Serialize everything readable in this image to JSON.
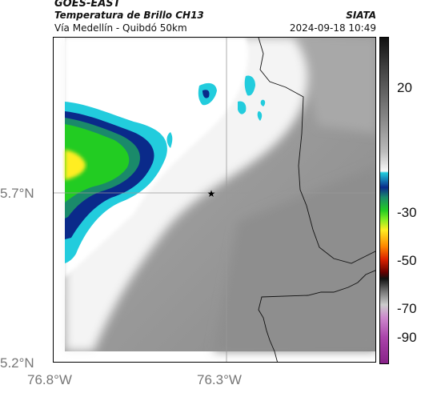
{
  "header": {
    "satellite": "GOES-EAST",
    "product": "Temperatura de Brillo CH13",
    "location": "Vía Medellín - Quibdó 50km",
    "organization": "SIATA",
    "timestamp": "2024-09-18 10:49"
  },
  "map": {
    "y_ticks": [
      "5.7°N",
      "5.2°N"
    ],
    "x_ticks": [
      "76.8°W",
      "76.3°W"
    ],
    "marker_icon": "star-icon",
    "colors": {
      "cold_cloud_green": "#22cc22",
      "cold_cloud_blue": "#0a2a8a",
      "cyan": "#22ccdd",
      "border": "#000000"
    }
  },
  "colorbar": {
    "labels": [
      "20",
      "-30",
      "-50",
      "-70",
      "-90"
    ]
  }
}
